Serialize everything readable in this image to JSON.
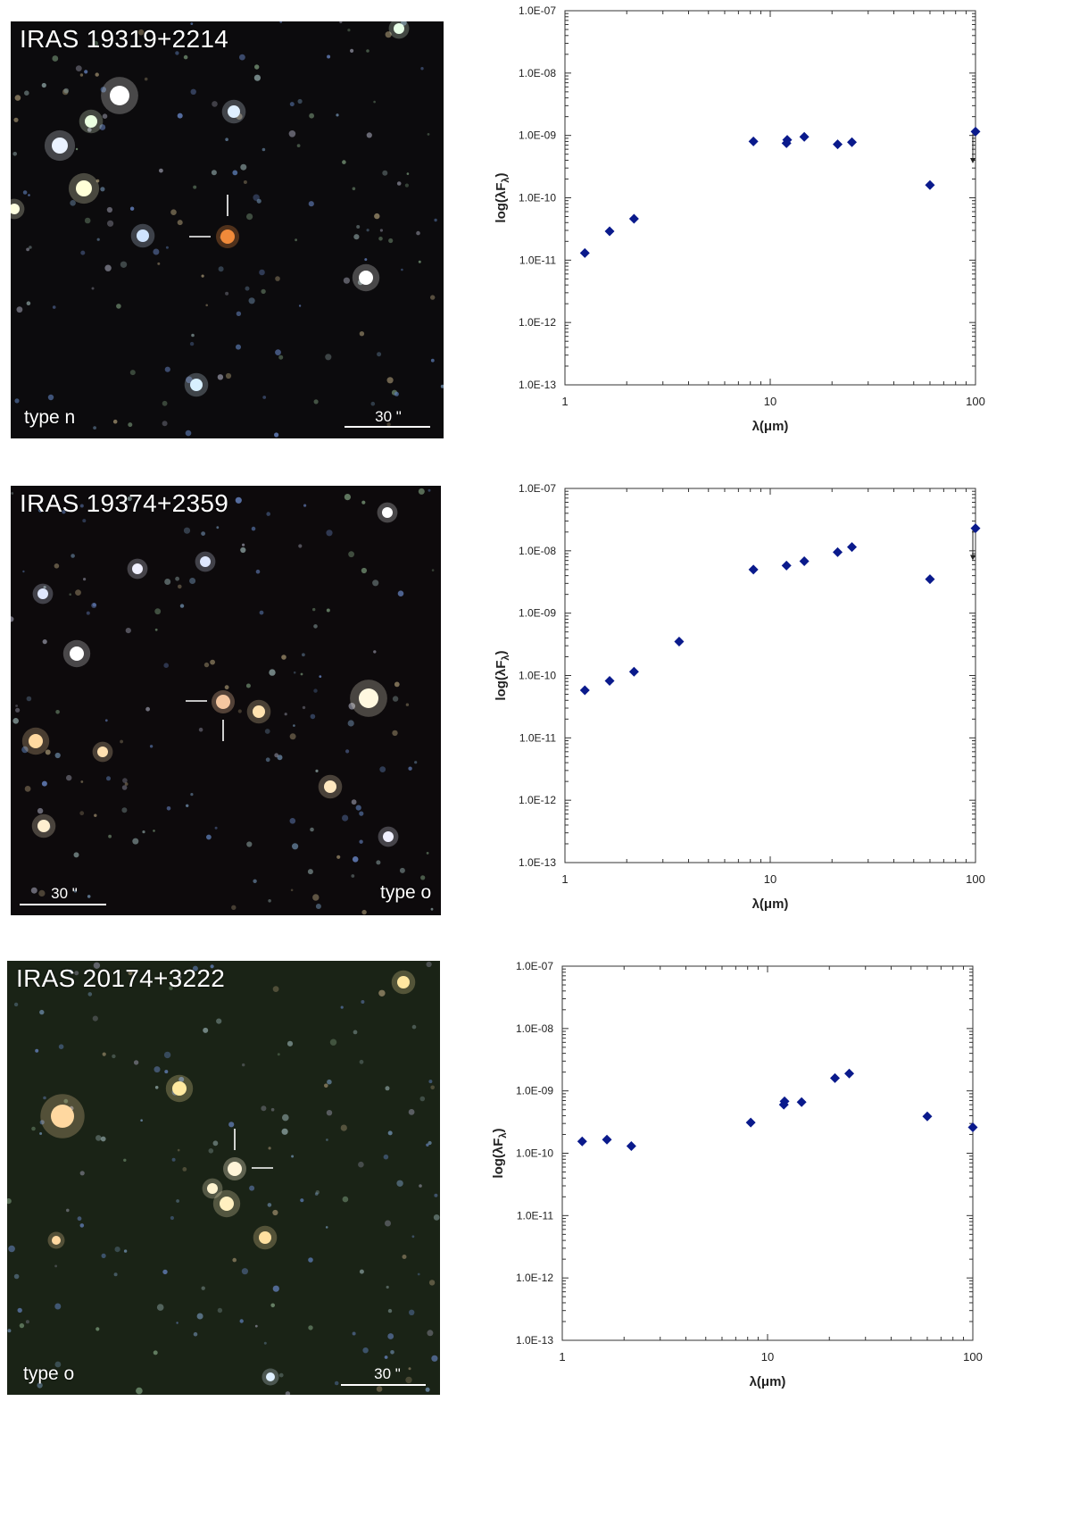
{
  "colors": {
    "marker": "#0a1a8c",
    "axis": "#333333",
    "sky_dark": "#0c0b0d",
    "sky_green": "#1a2316"
  },
  "panels": [
    {
      "image": {
        "title": "IRAS 19319+2214",
        "type_label": "type n",
        "scale_label": "30 \"",
        "type_position": "bottom-left",
        "scale_position": "bottom-right",
        "sky_color": "#0c0b0d",
        "target_color": "#f08a3a"
      },
      "chart_data": {
        "type": "scatter",
        "xlabel": "λ(μm)",
        "ylabel": "log(λF_λ)",
        "x_scale": "log",
        "y_scale": "log",
        "xlim": [
          1,
          100
        ],
        "ylim": [
          1e-13,
          1e-07
        ],
        "x_tick_labels": [
          "1",
          "10",
          "100"
        ],
        "y_tick_labels": [
          "1.0E-07",
          "1.0E-08",
          "1.0E-09",
          "1.0E-10",
          "1.0E-11",
          "1.0E-12",
          "1.0E-13"
        ],
        "grid": false,
        "points": [
          {
            "x": 1.25,
            "y": 1.3e-11
          },
          {
            "x": 1.65,
            "y": 2.9e-11
          },
          {
            "x": 2.17,
            "y": 4.6e-11
          },
          {
            "x": 8.28,
            "y": 8e-10
          },
          {
            "x": 12.0,
            "y": 7.5e-10
          },
          {
            "x": 12.1,
            "y": 8.5e-10
          },
          {
            "x": 14.65,
            "y": 9.5e-10
          },
          {
            "x": 21.3,
            "y": 7.2e-10
          },
          {
            "x": 25.0,
            "y": 7.8e-10
          },
          {
            "x": 60.0,
            "y": 1.6e-10
          },
          {
            "x": 100.0,
            "y": 1.15e-09
          }
        ],
        "upper_limit": {
          "x": 100.0,
          "y": 1.15e-09,
          "y_end": 3.8e-10
        }
      }
    },
    {
      "image": {
        "title": "IRAS 19374+2359",
        "type_label": "type o",
        "scale_label": "30 \"",
        "type_position": "bottom-right",
        "scale_position": "bottom-left",
        "sky_color": "#0d0a0c",
        "target_color": "#f4c6a0"
      },
      "chart_data": {
        "type": "scatter",
        "xlabel": "λ(μm)",
        "ylabel": "log(λF_λ)",
        "x_scale": "log",
        "y_scale": "log",
        "xlim": [
          1,
          100
        ],
        "ylim": [
          1e-13,
          1e-07
        ],
        "x_tick_labels": [
          "1",
          "10",
          "100"
        ],
        "y_tick_labels": [
          "1.0E-07",
          "1.0E-08",
          "1.0E-09",
          "1.0E-10",
          "1.0E-11",
          "1.0E-12",
          "1.0E-13"
        ],
        "grid": false,
        "points": [
          {
            "x": 1.25,
            "y": 5.8e-11
          },
          {
            "x": 1.65,
            "y": 8.2e-11
          },
          {
            "x": 2.17,
            "y": 1.15e-10
          },
          {
            "x": 3.6,
            "y": 3.5e-10
          },
          {
            "x": 8.28,
            "y": 5e-09
          },
          {
            "x": 12.0,
            "y": 5.8e-09
          },
          {
            "x": 14.65,
            "y": 6.8e-09
          },
          {
            "x": 21.3,
            "y": 9.5e-09
          },
          {
            "x": 25.0,
            "y": 1.15e-08
          },
          {
            "x": 60.0,
            "y": 3.5e-09
          },
          {
            "x": 100.0,
            "y": 2.3e-08
          }
        ],
        "upper_limit": {
          "x": 100.0,
          "y": 2.3e-08,
          "y_end": 7.5e-09
        }
      }
    },
    {
      "image": {
        "title": "IRAS 20174+3222",
        "type_label": "type o",
        "scale_label": "30 \"",
        "type_position": "bottom-left",
        "scale_position": "bottom-right",
        "sky_color": "#1a2316",
        "target_color": "#fff4d8"
      },
      "chart_data": {
        "type": "scatter",
        "xlabel": "λ(μm)",
        "ylabel": "log(λF_λ)",
        "x_scale": "log",
        "y_scale": "log",
        "xlim": [
          1,
          100
        ],
        "ylim": [
          1e-13,
          1e-07
        ],
        "x_tick_labels": [
          "1",
          "10",
          "100"
        ],
        "y_tick_labels": [
          "1.0E-07",
          "1.0E-08",
          "1.0E-09",
          "1.0E-10",
          "1.0E-11",
          "1.0E-12",
          "1.0E-13"
        ],
        "grid": false,
        "points": [
          {
            "x": 1.25,
            "y": 1.55e-10
          },
          {
            "x": 1.65,
            "y": 1.65e-10
          },
          {
            "x": 2.17,
            "y": 1.3e-10
          },
          {
            "x": 8.28,
            "y": 3.1e-10
          },
          {
            "x": 12.0,
            "y": 6e-10
          },
          {
            "x": 12.1,
            "y": 6.8e-10
          },
          {
            "x": 14.65,
            "y": 6.6e-10
          },
          {
            "x": 21.3,
            "y": 1.6e-09
          },
          {
            "x": 25.0,
            "y": 1.9e-09
          },
          {
            "x": 60.0,
            "y": 3.9e-10
          },
          {
            "x": 100.0,
            "y": 2.6e-10
          }
        ]
      }
    }
  ]
}
